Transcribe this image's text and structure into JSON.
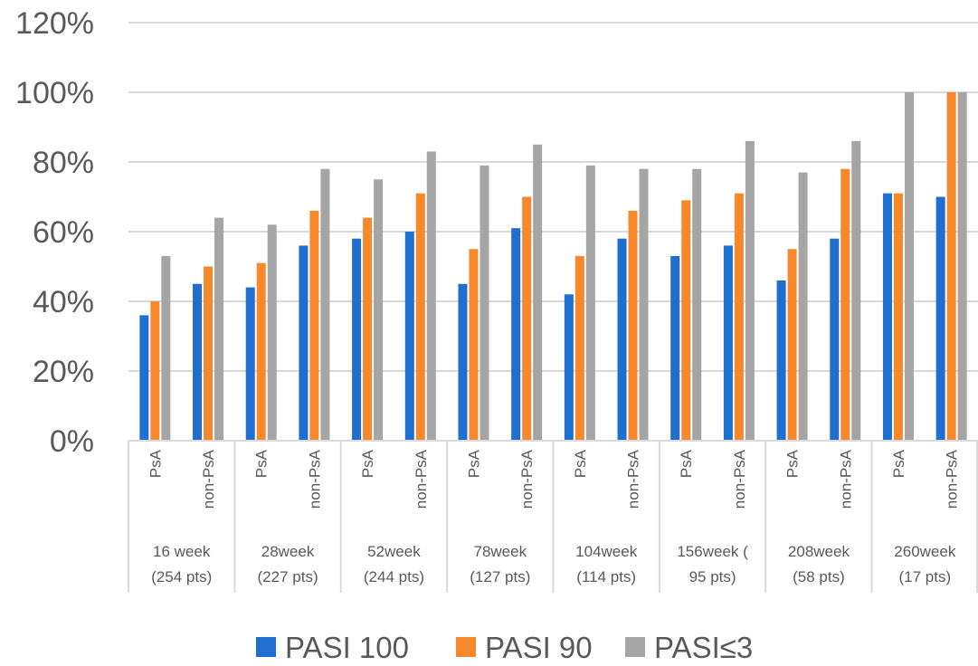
{
  "chart_data": {
    "type": "bar",
    "title": "",
    "xlabel": "",
    "ylabel": "",
    "ylim": [
      0,
      1.2
    ],
    "y_ticks": [
      {
        "value": 0,
        "label": "0%"
      },
      {
        "value": 0.2,
        "label": "20%"
      },
      {
        "value": 0.4,
        "label": "40%"
      },
      {
        "value": 0.6,
        "label": "60%"
      },
      {
        "value": 0.8,
        "label": "80%"
      },
      {
        "value": 1.0,
        "label": "100%"
      },
      {
        "value": 1.2,
        "label": "120%"
      }
    ],
    "grid": true,
    "legend_position": "bottom",
    "groups": [
      {
        "line1": "16 week",
        "line2": "(254 pts)"
      },
      {
        "line1": "28week",
        "line2": "(227 pts)"
      },
      {
        "line1": "52week",
        "line2": "(244 pts)"
      },
      {
        "line1": "78week",
        "line2": "(127 pts)"
      },
      {
        "line1": "104week",
        "line2": "(114 pts)"
      },
      {
        "line1": "156week (",
        "line2": "95 pts)"
      },
      {
        "line1": "208week",
        "line2": "(58 pts)"
      },
      {
        "line1": "260week",
        "line2": "(17 pts)"
      }
    ],
    "subcategories": [
      "PsA",
      "non-PsA"
    ],
    "series": [
      {
        "name": "PASI 100",
        "color": "#1f6fd0",
        "values": [
          0.36,
          0.45,
          0.44,
          0.56,
          0.58,
          0.6,
          0.45,
          0.61,
          0.42,
          0.58,
          0.53,
          0.56,
          0.46,
          0.58,
          0.71,
          0.7
        ]
      },
      {
        "name": "PASI 90",
        "color": "#f7892c",
        "values": [
          0.4,
          0.5,
          0.51,
          0.66,
          0.64,
          0.71,
          0.55,
          0.7,
          0.53,
          0.66,
          0.69,
          0.71,
          0.55,
          0.78,
          0.71,
          1.0
        ]
      },
      {
        "name": "PASI≤3",
        "color": "#a5a5a5",
        "values": [
          0.53,
          0.64,
          0.62,
          0.78,
          0.75,
          0.83,
          0.79,
          0.85,
          0.79,
          0.78,
          0.78,
          0.86,
          0.77,
          0.86,
          1.0,
          1.0
        ]
      }
    ]
  }
}
